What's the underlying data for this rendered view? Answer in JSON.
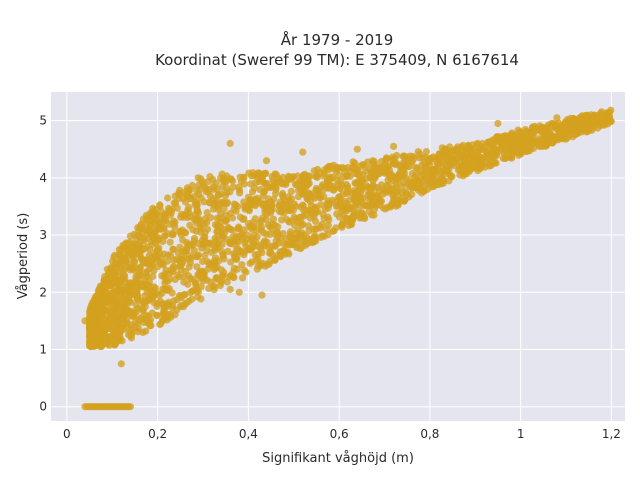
{
  "chart_data": {
    "type": "scatter",
    "title": "År 1979 - 2019",
    "subtitle": "Koordinat (Sweref 99 TM): E 375409, N 6167614",
    "xlabel": "Signifikant våghöjd (m)",
    "ylabel": "Vågperiod (s)",
    "xlim": [
      -0.035,
      1.23
    ],
    "ylim": [
      -0.25,
      5.5
    ],
    "x_ticks": [
      0,
      0.2,
      0.4,
      0.6,
      0.8,
      1,
      1.2
    ],
    "x_tick_labels": [
      "0",
      "0,2",
      "0,4",
      "0,6",
      "0,8",
      "1",
      "1,2"
    ],
    "y_ticks": [
      0,
      1,
      2,
      3,
      4,
      5
    ],
    "y_tick_labels": [
      "0",
      "1",
      "2",
      "3",
      "4",
      "5"
    ],
    "grid": true,
    "background": "#e5e5ef",
    "marker_color": "#d4a21f",
    "point_cloud": {
      "upper_edge": [
        [
          0.05,
          1.7
        ],
        [
          0.1,
          2.6
        ],
        [
          0.2,
          3.6
        ],
        [
          0.3,
          4.05
        ],
        [
          0.4,
          4.1
        ],
        [
          0.5,
          4.05
        ],
        [
          0.6,
          4.25
        ],
        [
          0.7,
          4.35
        ],
        [
          0.8,
          4.5
        ],
        [
          0.9,
          4.6
        ],
        [
          1.0,
          4.85
        ],
        [
          1.2,
          5.2
        ]
      ],
      "lower_edge": [
        [
          0.05,
          1.05
        ],
        [
          0.1,
          1.05
        ],
        [
          0.2,
          1.4
        ],
        [
          0.3,
          1.9
        ],
        [
          0.4,
          2.3
        ],
        [
          0.5,
          2.7
        ],
        [
          0.6,
          3.1
        ],
        [
          0.7,
          3.4
        ],
        [
          0.8,
          3.8
        ],
        [
          0.9,
          4.1
        ],
        [
          1.0,
          4.4
        ],
        [
          1.2,
          4.95
        ]
      ],
      "outlier_points": [
        [
          0.05,
          1.55
        ],
        [
          0.04,
          1.5
        ],
        [
          0.36,
          4.6
        ],
        [
          0.44,
          4.3
        ],
        [
          0.52,
          4.45
        ],
        [
          0.58,
          4.2
        ],
        [
          0.64,
          4.5
        ],
        [
          0.72,
          4.55
        ],
        [
          0.3,
          2.2
        ],
        [
          0.36,
          2.05
        ],
        [
          0.43,
          1.95
        ],
        [
          0.38,
          2.0
        ],
        [
          0.31,
          3.1
        ],
        [
          0.4,
          3.2
        ],
        [
          0.25,
          1.75
        ],
        [
          0.12,
          0.75
        ],
        [
          0.98,
          4.7
        ],
        [
          1.08,
          5.05
        ],
        [
          1.18,
          5.1
        ],
        [
          1.1,
          4.85
        ],
        [
          0.95,
          4.95
        ]
      ],
      "zero_period": {
        "x_range": [
          0.04,
          0.14
        ],
        "y": 0
      }
    }
  }
}
